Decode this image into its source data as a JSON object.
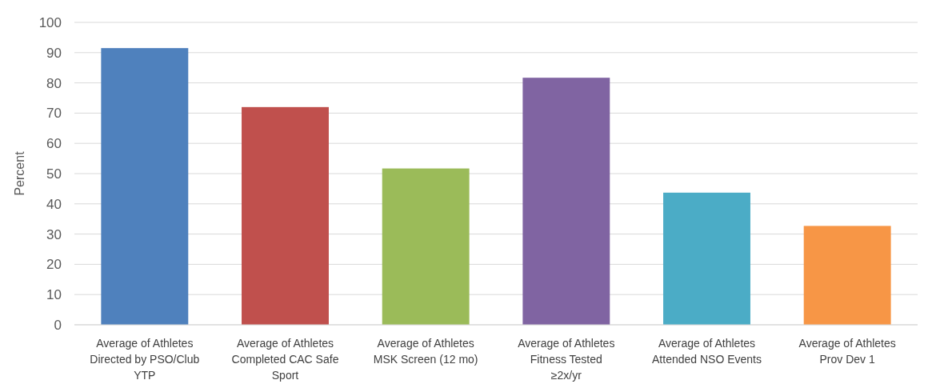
{
  "chart_data": {
    "type": "bar",
    "ylabel": "Percent",
    "categories": [
      "Average of Athletes Directed by PSO/Club YTP",
      "Average of Athletes Completed CAC Safe Sport",
      "Average of Athletes MSK Screen (12 mo)",
      "Average of Athletes Fitness Tested ≥2x/yr",
      "Average of Athletes Attended NSO Events",
      "Average of Athletes Prov Dev 1"
    ],
    "values": [
      91.5,
      72,
      51.7,
      81.7,
      43.7,
      32.7
    ],
    "colors": [
      "#4f81bd",
      "#c0504d",
      "#9bbb59",
      "#8064a2",
      "#4bacc6",
      "#f79646"
    ],
    "ylim": [
      0,
      100
    ],
    "yticks": [
      0,
      10,
      20,
      30,
      40,
      50,
      60,
      70,
      80,
      90,
      100
    ],
    "grid": "y"
  }
}
